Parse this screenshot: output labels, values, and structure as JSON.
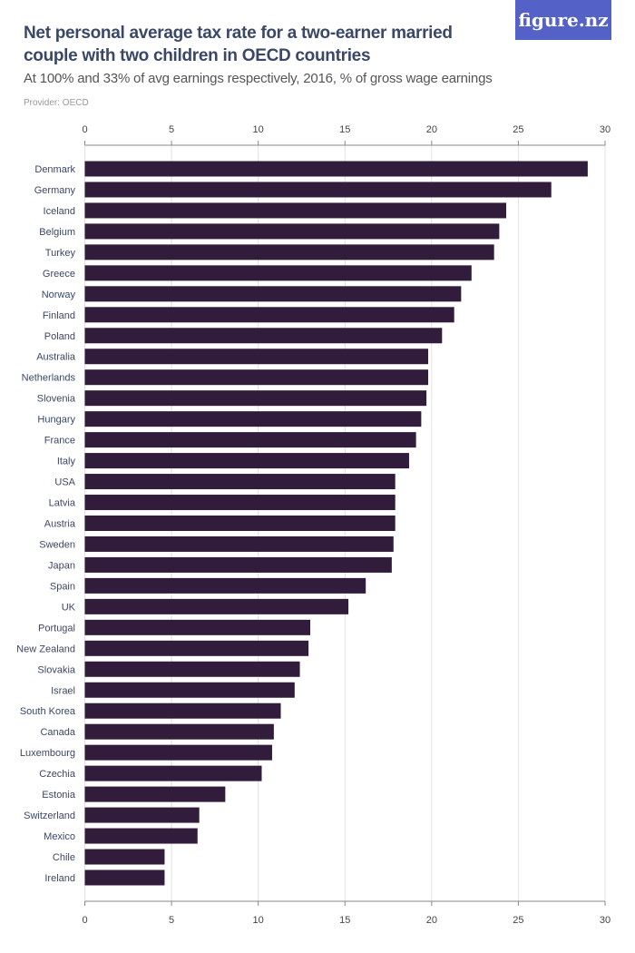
{
  "header": {
    "title": "Net personal average tax rate for a two-earner married couple with two children in OECD countries",
    "subtitle": "At 100% and 33% of avg earnings respectively, 2016, % of gross wage earnings",
    "provider": "Provider: OECD",
    "logo": "figure.nz"
  },
  "chart_data": {
    "type": "bar",
    "orientation": "horizontal",
    "title": "Net personal average tax rate for a two-earner married couple with two children in OECD countries",
    "subtitle": "At 100% and 33% of avg earnings respectively, 2016, % of gross wage earnings",
    "xlim": [
      0,
      30
    ],
    "xticks": [
      0,
      5,
      10,
      15,
      20,
      25,
      30
    ],
    "grid": true,
    "bar_color": "#321c3c",
    "categories": [
      "Denmark",
      "Germany",
      "Iceland",
      "Belgium",
      "Turkey",
      "Greece",
      "Norway",
      "Finland",
      "Poland",
      "Australia",
      "Netherlands",
      "Slovenia",
      "Hungary",
      "France",
      "Italy",
      "USA",
      "Latvia",
      "Austria",
      "Sweden",
      "Japan",
      "Spain",
      "UK",
      "Portugal",
      "New Zealand",
      "Slovakia",
      "Israel",
      "South Korea",
      "Canada",
      "Luxembourg",
      "Czechia",
      "Estonia",
      "Switzerland",
      "Mexico",
      "Chile",
      "Ireland"
    ],
    "values": [
      29.0,
      26.9,
      24.3,
      23.9,
      23.6,
      22.3,
      21.7,
      21.3,
      20.6,
      19.8,
      19.8,
      19.7,
      19.4,
      19.1,
      18.7,
      17.9,
      17.9,
      17.9,
      17.8,
      17.7,
      16.2,
      15.2,
      13.0,
      12.9,
      12.4,
      12.1,
      11.3,
      10.9,
      10.8,
      10.2,
      8.1,
      6.6,
      6.5,
      4.6,
      4.6
    ]
  }
}
